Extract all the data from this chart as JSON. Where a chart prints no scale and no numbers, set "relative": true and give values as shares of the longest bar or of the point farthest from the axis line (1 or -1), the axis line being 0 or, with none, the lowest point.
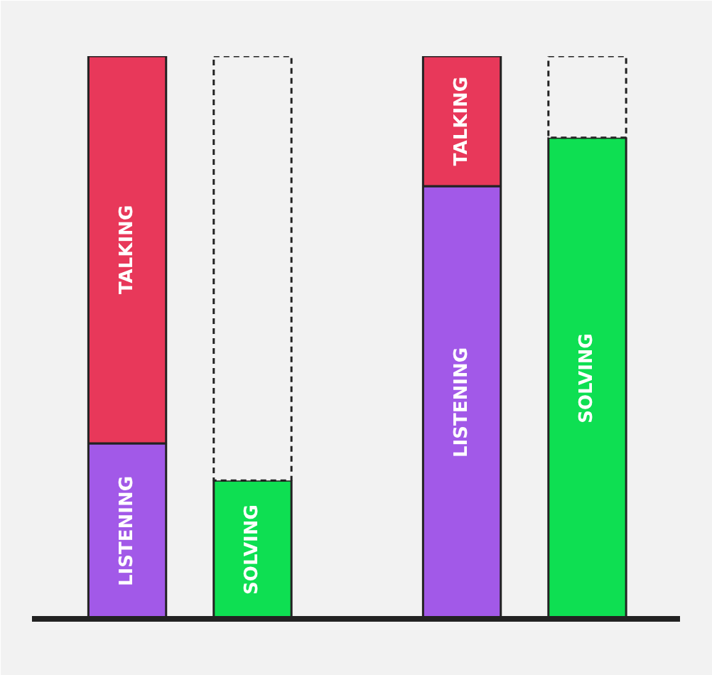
{
  "chart_data": {
    "type": "bar",
    "stacked": true,
    "relative": true,
    "categories": [
      null,
      null,
      null,
      null
    ],
    "series": [
      {
        "name": "LISTENING",
        "color": "#a259e8",
        "values": [
          0.312,
          null,
          0.769,
          null
        ]
      },
      {
        "name": "TALKING",
        "color": "#e8385a",
        "values": [
          0.688,
          null,
          0.231,
          null
        ]
      },
      {
        "name": "SOLVING",
        "color": "#0edf52",
        "values": [
          null,
          0.246,
          null,
          0.855
        ]
      },
      {
        "color": "#f2f2f2",
        "line_style": "dashed",
        "values": [
          null,
          0.754,
          null,
          0.145
        ]
      }
    ]
  }
}
